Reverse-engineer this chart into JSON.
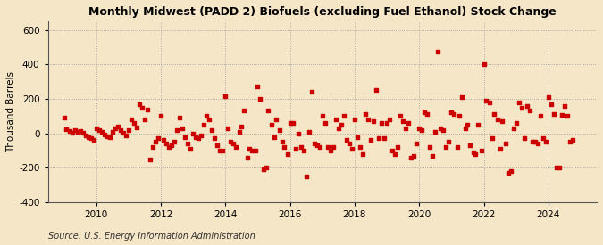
{
  "title": "Monthly Midwest (PADD 2) Biofuels (excluding Fuel Ethanol) Stock Change",
  "ylabel": "Thousand Barrels",
  "source": "Source: U.S. Energy Information Administration",
  "background_color": "#f5e6c8",
  "plot_bg_color": "#f5e6c8",
  "marker_color": "#cc0000",
  "ylim": [
    -400,
    650
  ],
  "yticks": [
    -400,
    -200,
    0,
    200,
    400,
    600
  ],
  "x_start_year": 2008.5,
  "x_end_year": 2025.5,
  "xticks": [
    2010,
    2012,
    2014,
    2016,
    2018,
    2020,
    2022,
    2024
  ],
  "data": [
    [
      2009.0,
      90
    ],
    [
      2009.08,
      25
    ],
    [
      2009.17,
      15
    ],
    [
      2009.25,
      5
    ],
    [
      2009.33,
      20
    ],
    [
      2009.42,
      10
    ],
    [
      2009.5,
      15
    ],
    [
      2009.58,
      5
    ],
    [
      2009.67,
      -10
    ],
    [
      2009.75,
      -20
    ],
    [
      2009.83,
      -30
    ],
    [
      2009.92,
      -40
    ],
    [
      2010.0,
      30
    ],
    [
      2010.08,
      20
    ],
    [
      2010.17,
      10
    ],
    [
      2010.25,
      -5
    ],
    [
      2010.33,
      -15
    ],
    [
      2010.42,
      -20
    ],
    [
      2010.5,
      10
    ],
    [
      2010.58,
      30
    ],
    [
      2010.67,
      40
    ],
    [
      2010.75,
      20
    ],
    [
      2010.83,
      5
    ],
    [
      2010.92,
      -10
    ],
    [
      2011.0,
      20
    ],
    [
      2011.08,
      80
    ],
    [
      2011.17,
      60
    ],
    [
      2011.25,
      35
    ],
    [
      2011.33,
      170
    ],
    [
      2011.42,
      150
    ],
    [
      2011.5,
      80
    ],
    [
      2011.58,
      140
    ],
    [
      2011.67,
      -150
    ],
    [
      2011.75,
      -80
    ],
    [
      2011.83,
      -50
    ],
    [
      2011.92,
      -30
    ],
    [
      2012.0,
      100
    ],
    [
      2012.08,
      -40
    ],
    [
      2012.17,
      -60
    ],
    [
      2012.25,
      -80
    ],
    [
      2012.33,
      -70
    ],
    [
      2012.42,
      -50
    ],
    [
      2012.5,
      20
    ],
    [
      2012.58,
      90
    ],
    [
      2012.67,
      30
    ],
    [
      2012.75,
      -20
    ],
    [
      2012.83,
      -60
    ],
    [
      2012.92,
      -90
    ],
    [
      2013.0,
      0
    ],
    [
      2013.08,
      -20
    ],
    [
      2013.17,
      -30
    ],
    [
      2013.25,
      -10
    ],
    [
      2013.33,
      50
    ],
    [
      2013.42,
      100
    ],
    [
      2013.5,
      80
    ],
    [
      2013.58,
      20
    ],
    [
      2013.67,
      -30
    ],
    [
      2013.75,
      -70
    ],
    [
      2013.83,
      -100
    ],
    [
      2013.92,
      -100
    ],
    [
      2014.0,
      215
    ],
    [
      2014.08,
      30
    ],
    [
      2014.17,
      -50
    ],
    [
      2014.25,
      -60
    ],
    [
      2014.33,
      -80
    ],
    [
      2014.42,
      10
    ],
    [
      2014.5,
      40
    ],
    [
      2014.58,
      130
    ],
    [
      2014.67,
      -140
    ],
    [
      2014.75,
      -90
    ],
    [
      2014.83,
      -100
    ],
    [
      2014.92,
      -100
    ],
    [
      2015.0,
      270
    ],
    [
      2015.08,
      200
    ],
    [
      2015.17,
      -210
    ],
    [
      2015.25,
      -200
    ],
    [
      2015.33,
      130
    ],
    [
      2015.42,
      50
    ],
    [
      2015.5,
      -20
    ],
    [
      2015.58,
      80
    ],
    [
      2015.67,
      20
    ],
    [
      2015.75,
      -50
    ],
    [
      2015.83,
      -80
    ],
    [
      2015.92,
      -120
    ],
    [
      2016.0,
      60
    ],
    [
      2016.08,
      60
    ],
    [
      2016.17,
      -90
    ],
    [
      2016.25,
      0
    ],
    [
      2016.33,
      -80
    ],
    [
      2016.42,
      -100
    ],
    [
      2016.5,
      -250
    ],
    [
      2016.58,
      10
    ],
    [
      2016.67,
      240
    ],
    [
      2016.75,
      -60
    ],
    [
      2016.83,
      -70
    ],
    [
      2016.92,
      -80
    ],
    [
      2017.0,
      100
    ],
    [
      2017.08,
      60
    ],
    [
      2017.17,
      -80
    ],
    [
      2017.25,
      -100
    ],
    [
      2017.33,
      -80
    ],
    [
      2017.42,
      80
    ],
    [
      2017.5,
      30
    ],
    [
      2017.58,
      50
    ],
    [
      2017.67,
      100
    ],
    [
      2017.75,
      -40
    ],
    [
      2017.83,
      -60
    ],
    [
      2017.92,
      -90
    ],
    [
      2018.0,
      80
    ],
    [
      2018.08,
      -20
    ],
    [
      2018.17,
      -80
    ],
    [
      2018.25,
      -120
    ],
    [
      2018.33,
      110
    ],
    [
      2018.42,
      80
    ],
    [
      2018.5,
      -40
    ],
    [
      2018.58,
      70
    ],
    [
      2018.67,
      250
    ],
    [
      2018.75,
      -30
    ],
    [
      2018.83,
      60
    ],
    [
      2018.92,
      -30
    ],
    [
      2019.0,
      60
    ],
    [
      2019.08,
      80
    ],
    [
      2019.17,
      -100
    ],
    [
      2019.25,
      -120
    ],
    [
      2019.33,
      -80
    ],
    [
      2019.42,
      100
    ],
    [
      2019.5,
      70
    ],
    [
      2019.58,
      30
    ],
    [
      2019.67,
      60
    ],
    [
      2019.75,
      -140
    ],
    [
      2019.83,
      -130
    ],
    [
      2019.92,
      -60
    ],
    [
      2020.0,
      30
    ],
    [
      2020.08,
      20
    ],
    [
      2020.17,
      120
    ],
    [
      2020.25,
      110
    ],
    [
      2020.33,
      -80
    ],
    [
      2020.42,
      -130
    ],
    [
      2020.5,
      10
    ],
    [
      2020.58,
      475
    ],
    [
      2020.67,
      30
    ],
    [
      2020.75,
      20
    ],
    [
      2020.83,
      -80
    ],
    [
      2020.92,
      -50
    ],
    [
      2021.0,
      120
    ],
    [
      2021.08,
      110
    ],
    [
      2021.17,
      -80
    ],
    [
      2021.25,
      100
    ],
    [
      2021.33,
      210
    ],
    [
      2021.42,
      30
    ],
    [
      2021.5,
      50
    ],
    [
      2021.58,
      -70
    ],
    [
      2021.67,
      -110
    ],
    [
      2021.75,
      -120
    ],
    [
      2021.83,
      50
    ],
    [
      2021.92,
      -100
    ],
    [
      2022.0,
      400
    ],
    [
      2022.08,
      190
    ],
    [
      2022.17,
      180
    ],
    [
      2022.25,
      -30
    ],
    [
      2022.33,
      110
    ],
    [
      2022.42,
      80
    ],
    [
      2022.5,
      -90
    ],
    [
      2022.58,
      70
    ],
    [
      2022.67,
      -60
    ],
    [
      2022.75,
      -230
    ],
    [
      2022.83,
      -220
    ],
    [
      2022.92,
      30
    ],
    [
      2023.0,
      60
    ],
    [
      2023.08,
      180
    ],
    [
      2023.17,
      150
    ],
    [
      2023.25,
      -30
    ],
    [
      2023.33,
      160
    ],
    [
      2023.42,
      130
    ],
    [
      2023.5,
      -50
    ],
    [
      2023.58,
      -50
    ],
    [
      2023.67,
      -60
    ],
    [
      2023.75,
      100
    ],
    [
      2023.83,
      -30
    ],
    [
      2023.92,
      -50
    ],
    [
      2024.0,
      210
    ],
    [
      2024.08,
      170
    ],
    [
      2024.17,
      110
    ],
    [
      2024.25,
      -200
    ],
    [
      2024.33,
      -200
    ],
    [
      2024.42,
      105
    ],
    [
      2024.5,
      160
    ],
    [
      2024.58,
      100
    ],
    [
      2024.67,
      -50
    ],
    [
      2024.75,
      -40
    ]
  ]
}
